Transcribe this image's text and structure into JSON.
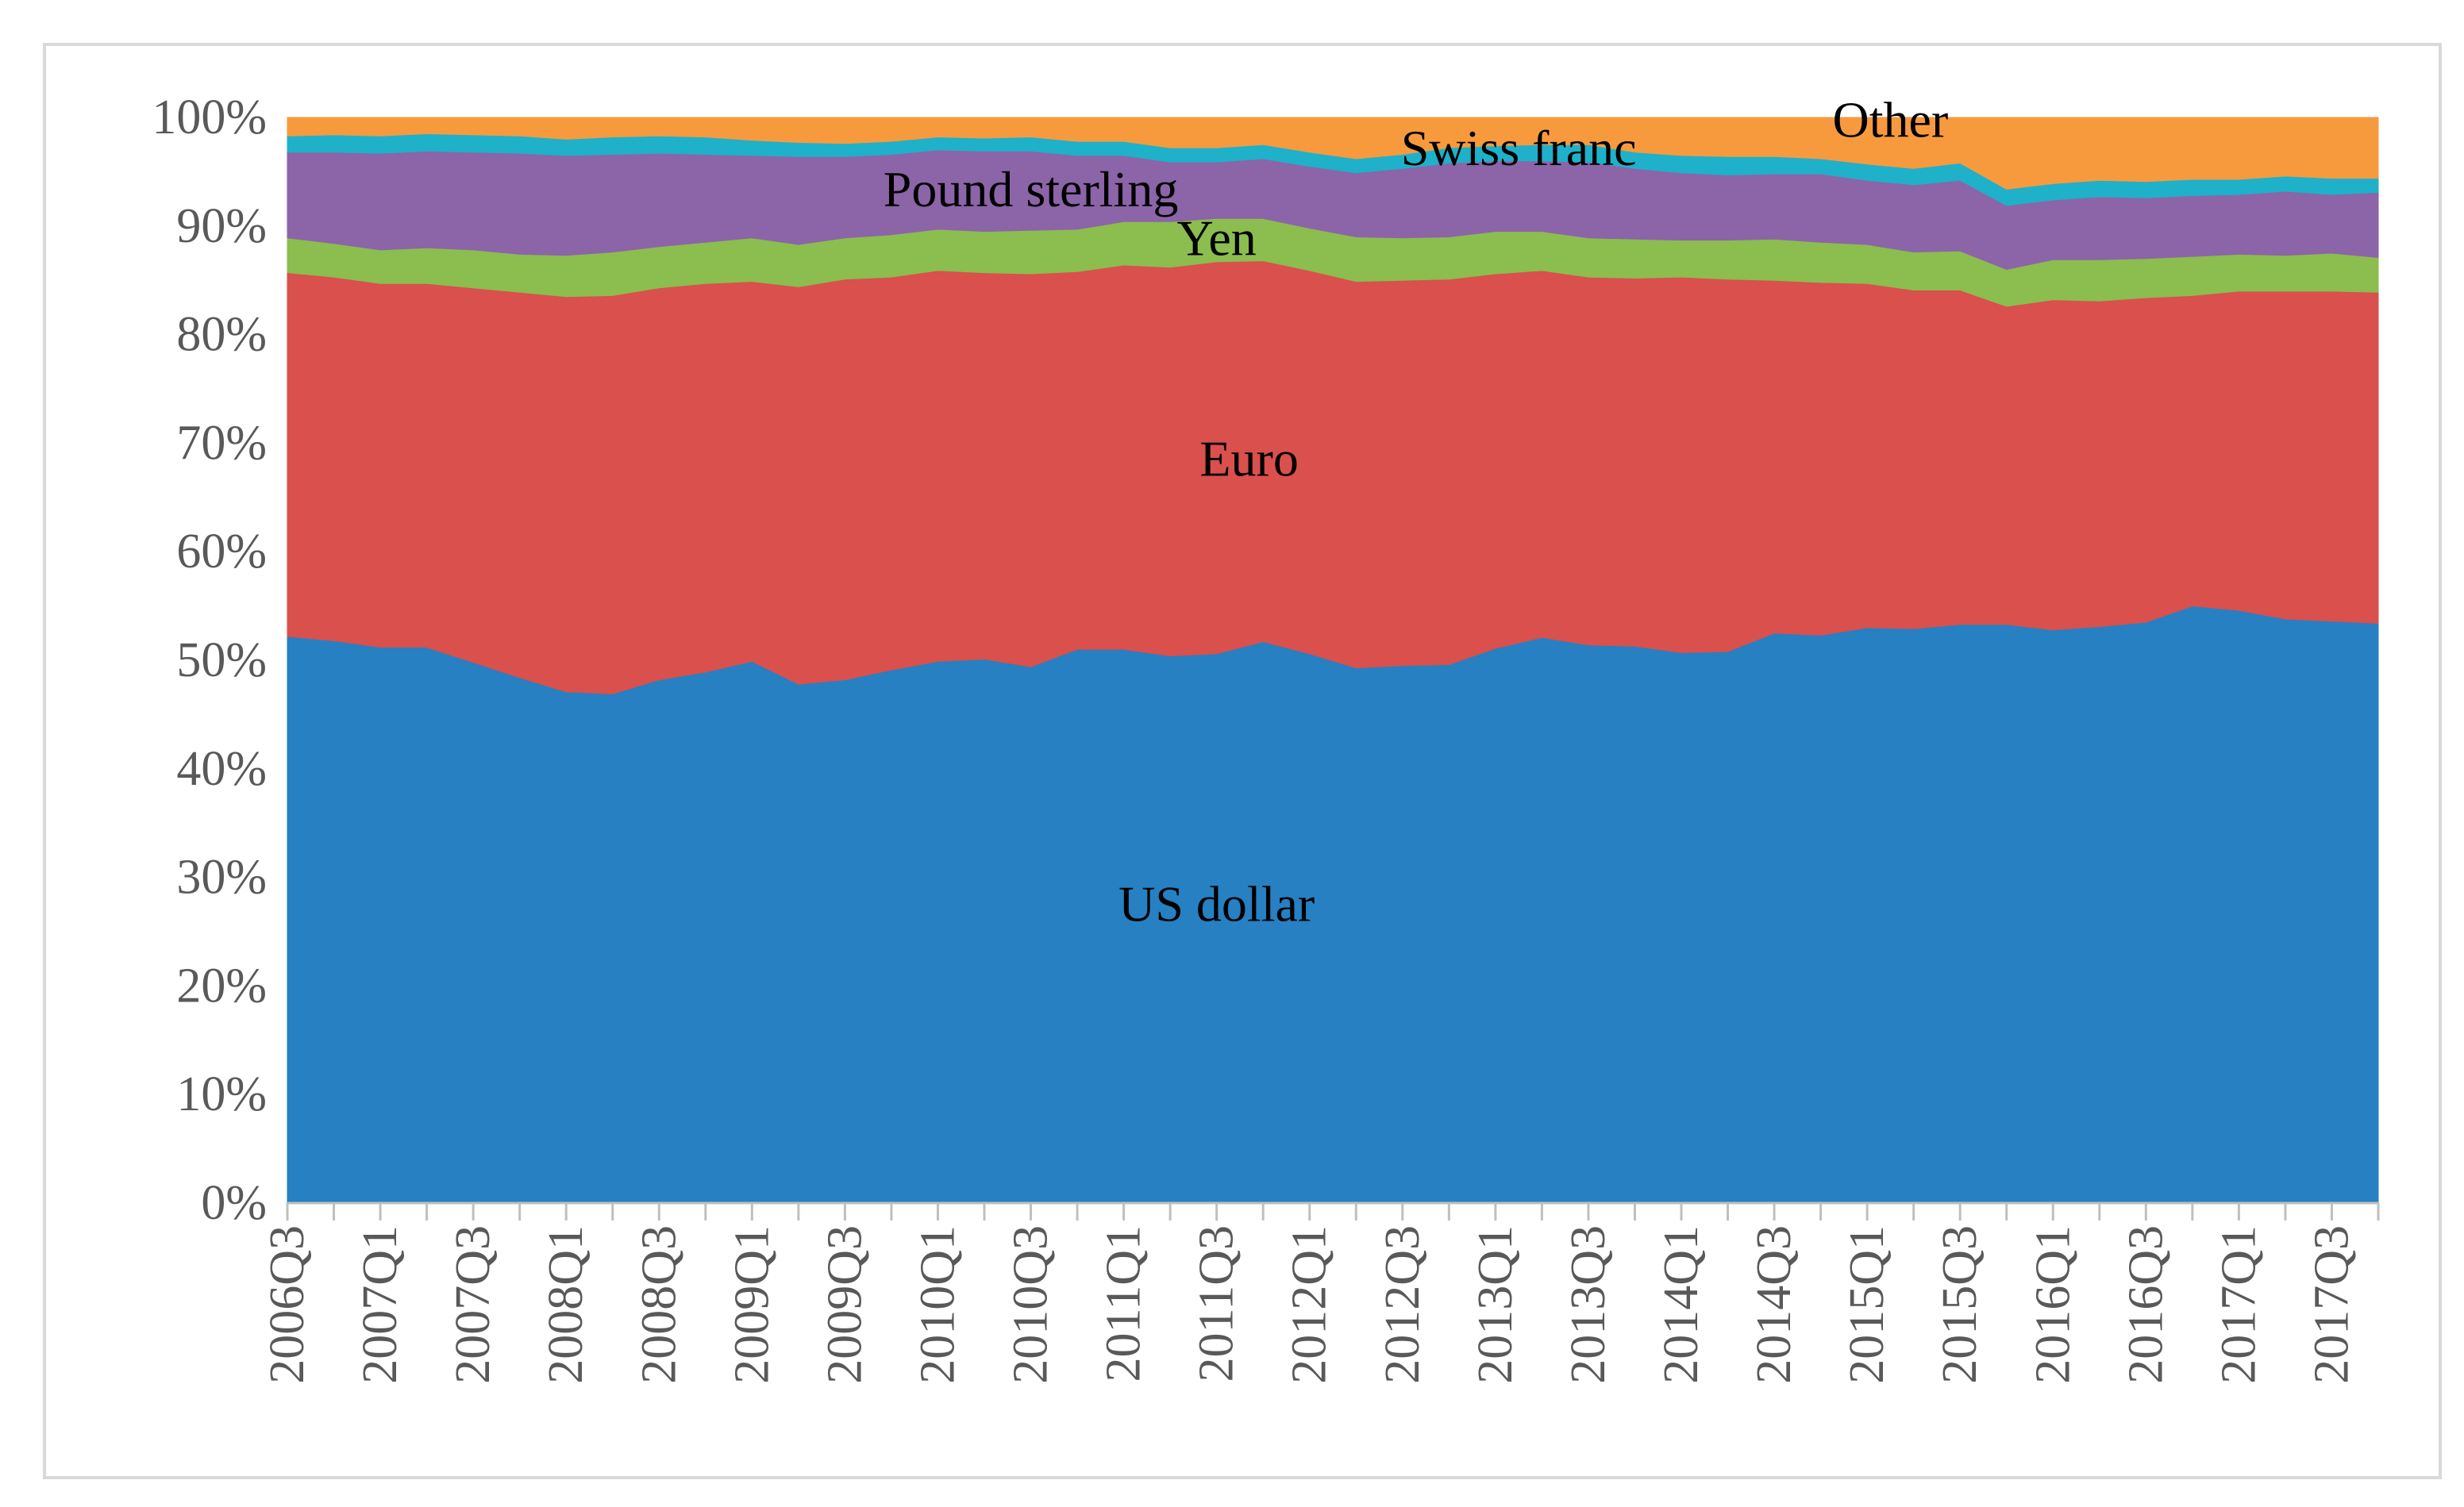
{
  "chart_data": {
    "type": "area",
    "stacked": true,
    "normalized_percent": true,
    "categories": [
      "2006Q3",
      "2006Q4",
      "2007Q1",
      "2007Q2",
      "2007Q3",
      "2007Q4",
      "2008Q1",
      "2008Q2",
      "2008Q3",
      "2008Q4",
      "2009Q1",
      "2009Q2",
      "2009Q3",
      "2009Q4",
      "2010Q1",
      "2010Q2",
      "2010Q3",
      "2010Q4",
      "2011Q1",
      "2011Q2",
      "2011Q3",
      "2011Q4",
      "2012Q1",
      "2012Q2",
      "2012Q3",
      "2012Q4",
      "2013Q1",
      "2013Q2",
      "2013Q3",
      "2013Q4",
      "2014Q1",
      "2014Q2",
      "2014Q3",
      "2014Q4",
      "2015Q1",
      "2015Q2",
      "2015Q3",
      "2015Q4",
      "2016Q1",
      "2016Q2",
      "2016Q3",
      "2016Q4",
      "2017Q1",
      "2017Q2",
      "2017Q3",
      "2017Q4"
    ],
    "x_tick_labels": [
      "2006Q3",
      "2007Q1",
      "2007Q3",
      "2008Q1",
      "2008Q3",
      "2009Q1",
      "2009Q3",
      "2010Q1",
      "2010Q3",
      "2011Q1",
      "2011Q3",
      "2012Q1",
      "2012Q3",
      "2013Q1",
      "2013Q3",
      "2014Q1",
      "2014Q3",
      "2015Q1",
      "2015Q3",
      "2016Q1",
      "2016Q3",
      "2017Q1",
      "2017Q3"
    ],
    "series": [
      {
        "name": "US dollar",
        "color": "#2680c2",
        "values": [
          52.2,
          51.8,
          51.2,
          51.2,
          49.8,
          48.4,
          47.1,
          46.9,
          48.2,
          48.9,
          49.9,
          47.8,
          48.2,
          49.1,
          49.9,
          50.1,
          49.4,
          51.0,
          51.0,
          50.4,
          50.6,
          51.7,
          50.6,
          49.3,
          49.5,
          49.6,
          51.1,
          52.1,
          51.4,
          51.3,
          50.7,
          50.8,
          52.5,
          52.3,
          53.0,
          52.9,
          53.3,
          53.3,
          52.8,
          53.1,
          53.5,
          55.0,
          54.6,
          53.8,
          53.6,
          53.4
        ]
      },
      {
        "name": "Euro",
        "color": "#d9504d",
        "values": [
          33.5,
          33.5,
          33.5,
          33.5,
          34.5,
          35.5,
          36.4,
          36.7,
          36.1,
          35.8,
          35.0,
          36.6,
          36.9,
          36.2,
          36.0,
          35.6,
          36.2,
          34.8,
          35.4,
          35.8,
          36.1,
          35.1,
          35.3,
          35.6,
          35.5,
          35.5,
          34.5,
          33.8,
          33.9,
          33.9,
          34.6,
          34.3,
          32.5,
          32.5,
          31.7,
          31.2,
          30.8,
          29.3,
          30.4,
          30.0,
          29.9,
          28.6,
          29.4,
          30.2,
          30.4,
          30.5
        ]
      },
      {
        "name": "Yen",
        "color": "#8bbd4f",
        "values": [
          3.2,
          3.1,
          3.1,
          3.3,
          3.5,
          3.5,
          3.8,
          4.0,
          3.8,
          3.8,
          4.0,
          3.9,
          3.8,
          3.9,
          3.8,
          3.8,
          4.0,
          3.9,
          4.0,
          4.2,
          4.0,
          3.9,
          3.9,
          4.1,
          3.9,
          3.9,
          3.9,
          3.6,
          3.6,
          3.6,
          3.4,
          3.6,
          3.8,
          3.7,
          3.6,
          3.5,
          3.6,
          3.4,
          3.7,
          3.8,
          3.6,
          3.6,
          3.4,
          3.3,
          3.5,
          3.2
        ]
      },
      {
        "name": "Pound sterling",
        "color": "#8c64a8",
        "values": [
          7.9,
          8.4,
          8.9,
          8.9,
          9.0,
          9.3,
          9.2,
          9.0,
          8.6,
          8.1,
          7.6,
          8.1,
          7.5,
          7.4,
          7.3,
          7.4,
          7.3,
          6.8,
          6.1,
          5.5,
          5.2,
          5.5,
          5.7,
          5.9,
          6.4,
          6.8,
          6.5,
          6.5,
          7.0,
          6.5,
          6.2,
          6.0,
          6.0,
          6.3,
          5.9,
          6.2,
          6.5,
          5.9,
          5.5,
          5.8,
          5.6,
          5.6,
          5.5,
          5.9,
          5.4,
          6.0
        ]
      },
      {
        "name": "Swiss franc",
        "color": "#1eb1c9",
        "values": [
          1.5,
          1.6,
          1.6,
          1.6,
          1.6,
          1.6,
          1.5,
          1.6,
          1.6,
          1.6,
          1.4,
          1.3,
          1.2,
          1.2,
          1.2,
          1.2,
          1.3,
          1.3,
          1.3,
          1.3,
          1.3,
          1.3,
          1.3,
          1.3,
          1.3,
          1.4,
          1.4,
          1.5,
          1.6,
          1.5,
          1.6,
          1.7,
          1.6,
          1.4,
          1.5,
          1.5,
          1.6,
          1.5,
          1.5,
          1.5,
          1.5,
          1.5,
          1.4,
          1.4,
          1.5,
          1.3
        ]
      },
      {
        "name": "Other",
        "color": "#f79a3e",
        "values": [
          1.7,
          1.6,
          1.7,
          1.5,
          1.6,
          1.7,
          2.0,
          1.8,
          1.7,
          1.8,
          2.1,
          2.3,
          2.4,
          2.2,
          1.8,
          1.9,
          1.8,
          2.2,
          2.2,
          2.8,
          2.8,
          2.5,
          3.2,
          3.8,
          3.4,
          2.8,
          2.6,
          2.5,
          2.5,
          3.2,
          3.5,
          3.6,
          3.6,
          3.8,
          4.3,
          4.7,
          4.2,
          6.6,
          6.1,
          5.8,
          5.9,
          5.7,
          5.7,
          5.4,
          5.6,
          5.6
        ]
      }
    ],
    "annotations": [
      "US dollar",
      "Euro",
      "Yen",
      "Pound sterling",
      "Swiss franc",
      "Other"
    ],
    "ylim": [
      0,
      100
    ],
    "y_tick_labels": [
      "0%",
      "10%",
      "20%",
      "30%",
      "40%",
      "50%",
      "60%",
      "70%",
      "80%",
      "90%",
      "100%"
    ],
    "title": "",
    "xlabel": "",
    "ylabel": "",
    "grid": false,
    "legend": "none"
  }
}
